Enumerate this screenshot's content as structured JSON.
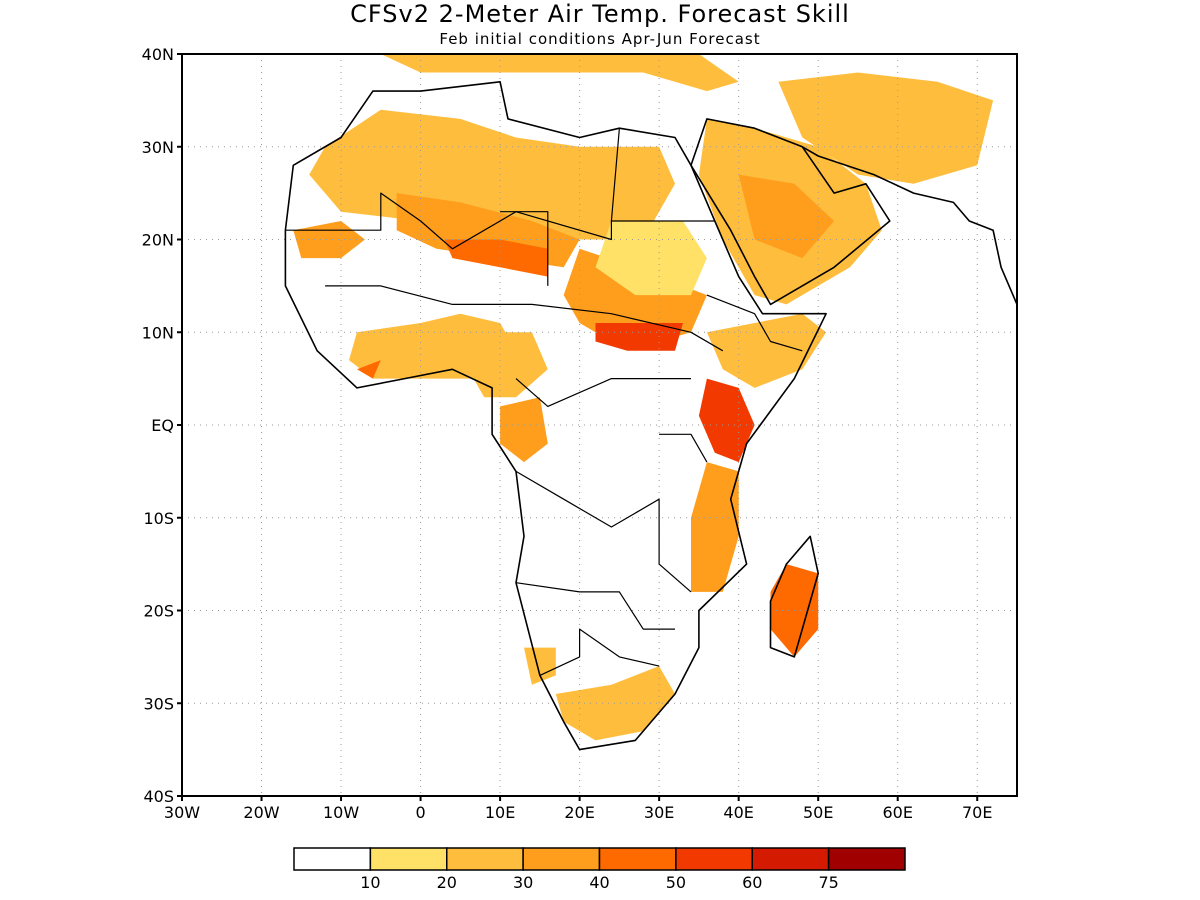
{
  "title": "CFSv2 2-Meter Air Temp. Forecast Skill",
  "subtitle": "Feb initial conditions  Apr-Jun Forecast",
  "axes": {
    "lat_labels": [
      "40N",
      "30N",
      "20N",
      "10N",
      "EQ",
      "10S",
      "20S",
      "30S",
      "40S"
    ],
    "lon_labels": [
      "30W",
      "20W",
      "10W",
      "0",
      "10E",
      "20E",
      "30E",
      "40E",
      "50E",
      "60E",
      "70E"
    ],
    "lat_range": [
      -40,
      40
    ],
    "lon_range": [
      -30,
      75
    ],
    "grid": true
  },
  "colorbar": {
    "labels": [
      "10",
      "20",
      "30",
      "40",
      "50",
      "60",
      "75"
    ],
    "colors": [
      "#ffffff",
      "#ffe168",
      "#ffbd3d",
      "#ff9d1c",
      "#ff6a00",
      "#f23a00",
      "#d41a00",
      "#a00000"
    ]
  },
  "skill_regions": [
    {
      "name": "sahara-north",
      "level": 2,
      "points": [
        [
          -12,
          30
        ],
        [
          -5,
          34
        ],
        [
          5,
          33
        ],
        [
          12,
          31
        ],
        [
          20,
          30
        ],
        [
          30,
          30
        ],
        [
          32,
          26
        ],
        [
          28,
          20
        ],
        [
          20,
          20
        ],
        [
          10,
          21
        ],
        [
          0,
          22
        ],
        [
          -10,
          23
        ],
        [
          -14,
          27
        ]
      ]
    },
    {
      "name": "sahara-core",
      "level": 3,
      "points": [
        [
          -3,
          25
        ],
        [
          5,
          24
        ],
        [
          14,
          22
        ],
        [
          20,
          20
        ],
        [
          18,
          17
        ],
        [
          10,
          18
        ],
        [
          2,
          19
        ],
        [
          -3,
          21
        ]
      ]
    },
    {
      "name": "mali-niger",
      "level": 4,
      "points": [
        [
          3,
          20
        ],
        [
          10,
          20
        ],
        [
          16,
          19
        ],
        [
          16,
          16
        ],
        [
          10,
          17
        ],
        [
          4,
          18
        ]
      ]
    },
    {
      "name": "mauritania",
      "level": 3,
      "points": [
        [
          -16,
          21
        ],
        [
          -10,
          22
        ],
        [
          -7,
          20
        ],
        [
          -10,
          18
        ],
        [
          -15,
          18
        ]
      ]
    },
    {
      "name": "sahel-east",
      "level": 3,
      "points": [
        [
          20,
          19
        ],
        [
          27,
          17
        ],
        [
          33,
          15
        ],
        [
          36,
          14
        ],
        [
          34,
          10
        ],
        [
          30,
          9
        ],
        [
          24,
          9
        ],
        [
          20,
          11
        ],
        [
          18,
          14
        ]
      ]
    },
    {
      "name": "south-sudan",
      "level": 5,
      "points": [
        [
          22,
          11
        ],
        [
          28,
          11
        ],
        [
          33,
          11
        ],
        [
          32,
          8
        ],
        [
          26,
          8
        ],
        [
          22,
          9
        ]
      ]
    },
    {
      "name": "sudan-yellow",
      "level": 1,
      "points": [
        [
          24,
          22
        ],
        [
          33,
          22
        ],
        [
          36,
          18
        ],
        [
          34,
          14
        ],
        [
          27,
          14
        ],
        [
          22,
          17
        ]
      ]
    },
    {
      "name": "west-africa-coast",
      "level": 2,
      "points": [
        [
          -8,
          10
        ],
        [
          0,
          11
        ],
        [
          5,
          12
        ],
        [
          10,
          11
        ],
        [
          12,
          8
        ],
        [
          8,
          5
        ],
        [
          2,
          5
        ],
        [
          -6,
          5
        ],
        [
          -9,
          7
        ]
      ]
    },
    {
      "name": "guinea-red",
      "level": 4,
      "points": [
        [
          -8,
          6
        ],
        [
          -5,
          7
        ],
        [
          -6,
          5
        ]
      ]
    },
    {
      "name": "nigeria-cameroon",
      "level": 2,
      "points": [
        [
          6,
          10
        ],
        [
          14,
          10
        ],
        [
          16,
          6
        ],
        [
          12,
          3
        ],
        [
          8,
          3
        ],
        [
          6,
          6
        ]
      ]
    },
    {
      "name": "gabon-congo",
      "level": 3,
      "points": [
        [
          10,
          2
        ],
        [
          15,
          3
        ],
        [
          16,
          -2
        ],
        [
          13,
          -4
        ],
        [
          10,
          -2
        ]
      ]
    },
    {
      "name": "arabia",
      "level": 2,
      "points": [
        [
          36,
          33
        ],
        [
          42,
          32
        ],
        [
          50,
          30
        ],
        [
          56,
          26
        ],
        [
          58,
          21
        ],
        [
          54,
          17
        ],
        [
          46,
          13
        ],
        [
          42,
          14
        ],
        [
          38,
          20
        ],
        [
          35,
          27
        ]
      ]
    },
    {
      "name": "arabia-hot",
      "level": 3,
      "points": [
        [
          40,
          27
        ],
        [
          47,
          26
        ],
        [
          52,
          22
        ],
        [
          48,
          18
        ],
        [
          42,
          20
        ]
      ]
    },
    {
      "name": "iran-pakistan",
      "level": 2,
      "points": [
        [
          45,
          37
        ],
        [
          55,
          38
        ],
        [
          65,
          37
        ],
        [
          72,
          35
        ],
        [
          70,
          28
        ],
        [
          62,
          26
        ],
        [
          55,
          27
        ],
        [
          48,
          31
        ]
      ]
    },
    {
      "name": "east-africa-hot",
      "level": 5,
      "points": [
        [
          36,
          5
        ],
        [
          40,
          4
        ],
        [
          42,
          0
        ],
        [
          40,
          -4
        ],
        [
          37,
          -3
        ],
        [
          35,
          1
        ]
      ]
    },
    {
      "name": "horn-ethiopia",
      "level": 2,
      "points": [
        [
          36,
          10
        ],
        [
          42,
          11
        ],
        [
          48,
          12
        ],
        [
          51,
          10
        ],
        [
          48,
          6
        ],
        [
          42,
          4
        ],
        [
          38,
          6
        ]
      ]
    },
    {
      "name": "east-africa-coast",
      "level": 3,
      "points": [
        [
          36,
          -4
        ],
        [
          40,
          -5
        ],
        [
          40,
          -12
        ],
        [
          38,
          -18
        ],
        [
          34,
          -18
        ],
        [
          34,
          -10
        ]
      ]
    },
    {
      "name": "madagascar",
      "level": 4,
      "points": [
        [
          46,
          -15
        ],
        [
          50,
          -16
        ],
        [
          50,
          -22
        ],
        [
          47,
          -25
        ],
        [
          44,
          -22
        ],
        [
          44,
          -18
        ]
      ]
    },
    {
      "name": "south-africa",
      "level": 2,
      "points": [
        [
          17,
          -29
        ],
        [
          24,
          -28
        ],
        [
          30,
          -26
        ],
        [
          32,
          -29
        ],
        [
          28,
          -33
        ],
        [
          22,
          -34
        ],
        [
          18,
          -32
        ]
      ]
    },
    {
      "name": "namibia-patch",
      "level": 2,
      "points": [
        [
          13,
          -24
        ],
        [
          17,
          -24
        ],
        [
          17,
          -27
        ],
        [
          14,
          -28
        ]
      ]
    },
    {
      "name": "mediterranean-north",
      "level": 2,
      "points": [
        [
          -5,
          40
        ],
        [
          10,
          40
        ],
        [
          25,
          40
        ],
        [
          35,
          40
        ],
        [
          40,
          37
        ],
        [
          36,
          36
        ],
        [
          28,
          38
        ],
        [
          15,
          38
        ],
        [
          0,
          38
        ]
      ]
    }
  ],
  "africa_outline": [
    [
      -17,
      21
    ],
    [
      -16,
      28
    ],
    [
      -10,
      31
    ],
    [
      -6,
      36
    ],
    [
      0,
      36
    ],
    [
      10,
      37
    ],
    [
      11,
      33
    ],
    [
      20,
      31
    ],
    [
      25,
      32
    ],
    [
      32,
      31
    ],
    [
      34,
      28
    ],
    [
      37,
      22
    ],
    [
      40,
      16
    ],
    [
      43,
      12
    ],
    [
      51,
      12
    ],
    [
      47,
      5
    ],
    [
      41,
      -2
    ],
    [
      39,
      -8
    ],
    [
      41,
      -15
    ],
    [
      35,
      -20
    ],
    [
      35,
      -24
    ],
    [
      32,
      -29
    ],
    [
      27,
      -34
    ],
    [
      20,
      -35
    ],
    [
      18,
      -32
    ],
    [
      15,
      -27
    ],
    [
      12,
      -17
    ],
    [
      13,
      -12
    ],
    [
      12,
      -5
    ],
    [
      9,
      -1
    ],
    [
      9,
      4
    ],
    [
      4,
      6
    ],
    [
      -2,
      5
    ],
    [
      -8,
      4
    ],
    [
      -13,
      8
    ],
    [
      -17,
      15
    ],
    [
      -17,
      21
    ]
  ],
  "arabia_outline": [
    [
      34,
      28
    ],
    [
      36,
      33
    ],
    [
      42,
      32
    ],
    [
      48,
      30
    ],
    [
      52,
      25
    ],
    [
      56,
      26
    ],
    [
      59,
      22
    ],
    [
      52,
      17
    ],
    [
      44,
      13
    ],
    [
      42,
      16
    ],
    [
      39,
      21
    ],
    [
      34,
      28
    ]
  ],
  "asia_coast": [
    [
      48,
      30
    ],
    [
      50,
      29
    ],
    [
      57,
      27
    ],
    [
      62,
      25
    ],
    [
      67,
      24
    ],
    [
      69,
      22
    ],
    [
      72,
      21
    ],
    [
      73,
      17
    ],
    [
      75,
      13
    ]
  ],
  "madagascar_outline": [
    [
      49,
      -12
    ],
    [
      50,
      -16
    ],
    [
      48,
      -22
    ],
    [
      47,
      -25
    ],
    [
      44,
      -24
    ],
    [
      44,
      -19
    ],
    [
      46,
      -15
    ],
    [
      49,
      -12
    ]
  ]
}
